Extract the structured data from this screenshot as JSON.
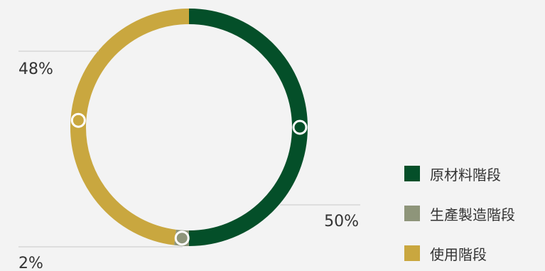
{
  "chart_data": {
    "type": "pie",
    "title": "",
    "series": [
      {
        "name": "原材料階段",
        "value": 50,
        "label": "50%",
        "color": "#044f29"
      },
      {
        "name": "生產製造階段",
        "value": 2,
        "label": "2%",
        "color": "#8e957a"
      },
      {
        "name": "使用階段",
        "value": 48,
        "label": "48%",
        "color": "#c9a73f"
      }
    ],
    "legend_position": "right-bottom"
  }
}
